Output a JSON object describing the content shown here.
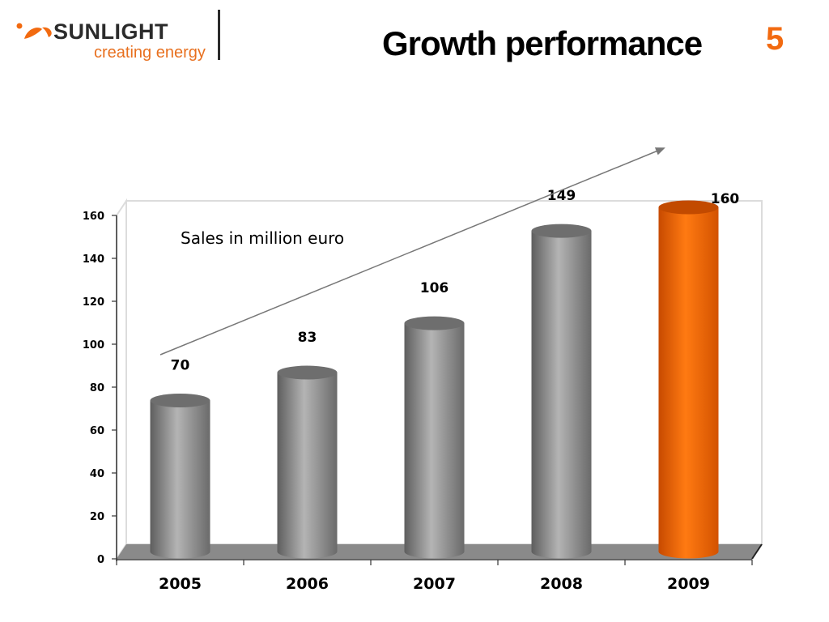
{
  "logo": {
    "brand": "SUNLIGHT",
    "tagline": "creating energy"
  },
  "header": {
    "title": "Growth performance",
    "page_number": "5"
  },
  "colors": {
    "accent": "#ff6a00",
    "bar": "#8c8c8c",
    "floor": "#8a8a8a"
  },
  "chart_data": {
    "type": "bar",
    "annotation": "Sales in million euro",
    "categories": [
      "2005",
      "2006",
      "2007",
      "2008",
      "2009"
    ],
    "values": [
      70,
      83,
      106,
      149,
      160
    ],
    "ylim": [
      0,
      160
    ],
    "yticks": [
      0,
      20,
      40,
      60,
      80,
      100,
      120,
      140,
      160
    ],
    "highlight_index": 4,
    "trend_arrow": true,
    "grid": false,
    "style": "3d-cylinder"
  }
}
